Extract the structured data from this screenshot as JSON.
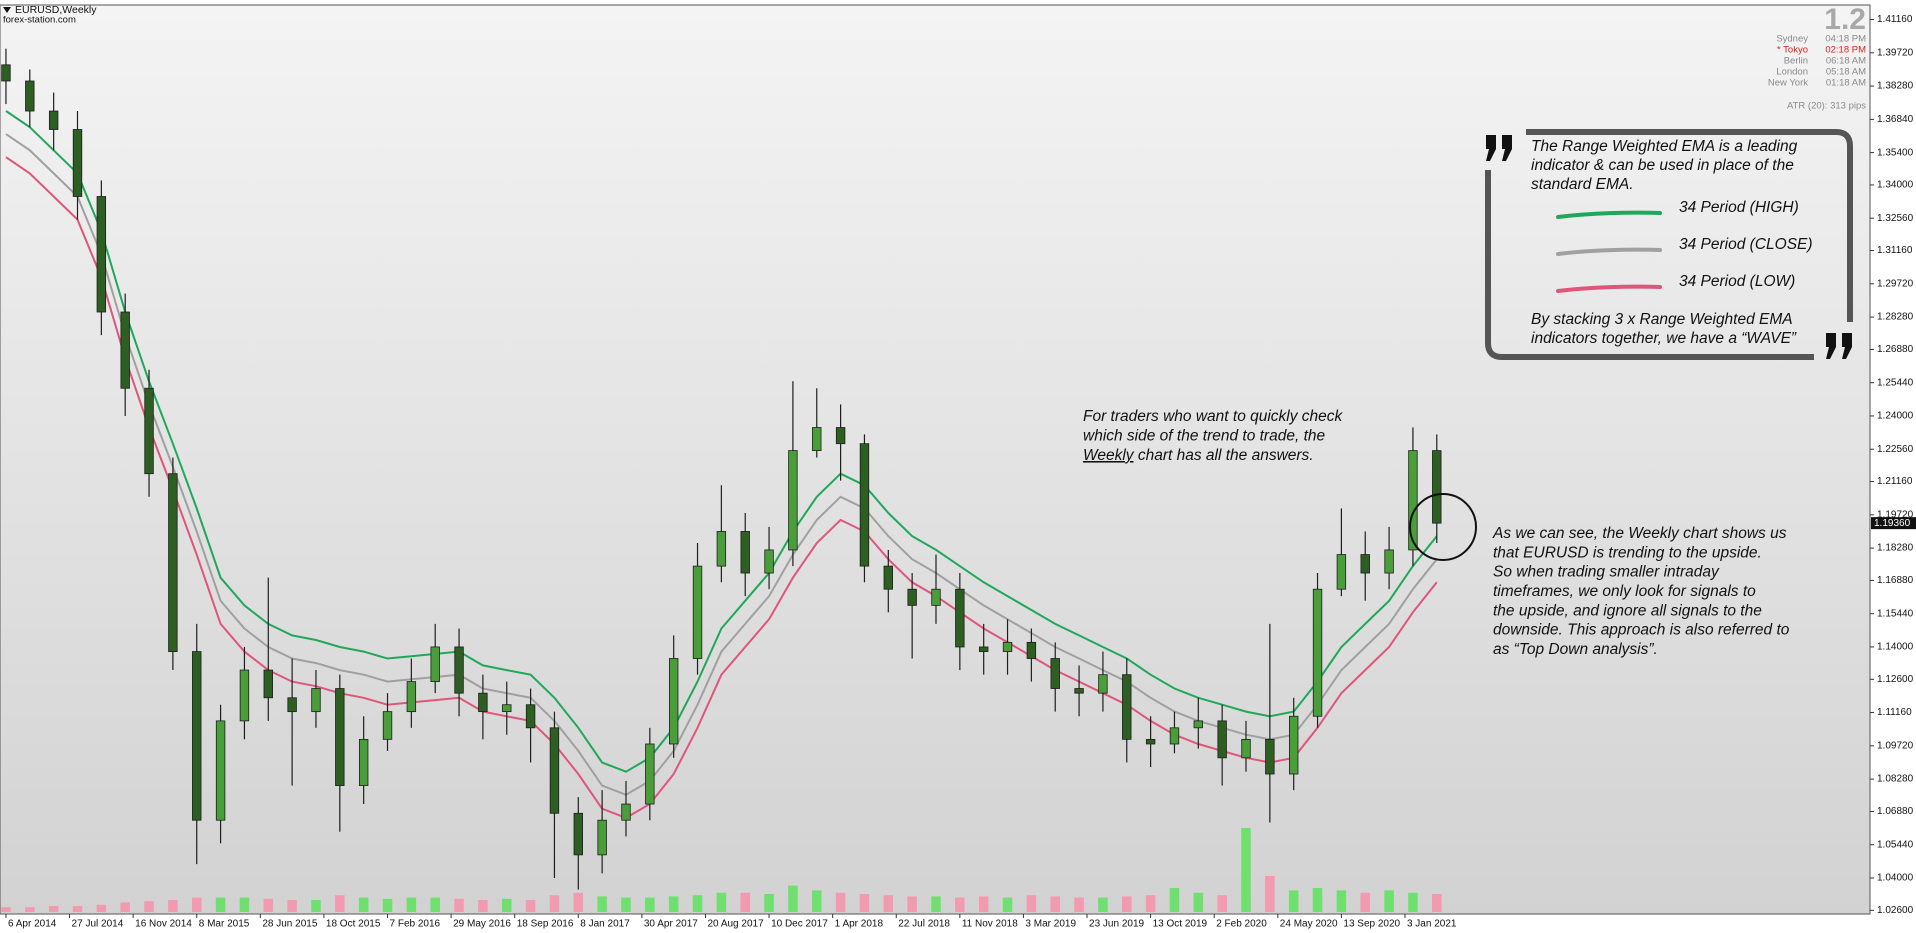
{
  "chart_data": {
    "type": "candlestick",
    "title": "EURUSD,Weekly",
    "subtitle": "forex-station.com",
    "x": [
      0,
      6,
      12,
      18,
      24,
      30,
      36,
      42,
      48,
      54,
      60,
      66,
      72,
      78,
      84,
      90,
      96,
      102,
      108,
      114,
      120,
      126,
      132,
      138,
      144,
      150,
      156,
      162,
      168,
      174,
      180,
      186,
      192,
      198,
      204,
      210,
      216,
      222,
      228,
      234,
      240,
      246,
      252,
      258,
      264,
      270,
      276,
      282,
      288,
      294,
      300,
      306,
      312,
      318,
      324,
      330,
      336,
      342,
      348,
      354,
      360
    ],
    "open": [
      1.392,
      1.385,
      1.372,
      1.364,
      1.335,
      1.285,
      1.252,
      1.215,
      1.138,
      1.065,
      1.108,
      1.13,
      1.118,
      1.112,
      1.122,
      1.08,
      1.1,
      1.112,
      1.125,
      1.14,
      1.12,
      1.112,
      1.115,
      1.105,
      1.068,
      1.05,
      1.065,
      1.072,
      1.098,
      1.135,
      1.175,
      1.19,
      1.172,
      1.182,
      1.225,
      1.235,
      1.228,
      1.175,
      1.165,
      1.158,
      1.165,
      1.14,
      1.138,
      1.142,
      1.135,
      1.122,
      1.12,
      1.128,
      1.1,
      1.098,
      1.105,
      1.108,
      1.092,
      1.1,
      1.085,
      1.11,
      1.165,
      1.18,
      1.172,
      1.182,
      1.225
    ],
    "high": [
      1.399,
      1.39,
      1.38,
      1.372,
      1.342,
      1.293,
      1.26,
      1.222,
      1.15,
      1.115,
      1.14,
      1.17,
      1.135,
      1.13,
      1.128,
      1.11,
      1.12,
      1.135,
      1.15,
      1.148,
      1.128,
      1.125,
      1.122,
      1.112,
      1.075,
      1.078,
      1.082,
      1.105,
      1.145,
      1.185,
      1.21,
      1.198,
      1.192,
      1.255,
      1.252,
      1.245,
      1.232,
      1.182,
      1.172,
      1.18,
      1.172,
      1.15,
      1.152,
      1.148,
      1.142,
      1.132,
      1.138,
      1.135,
      1.11,
      1.112,
      1.118,
      1.115,
      1.108,
      1.15,
      1.118,
      1.172,
      1.2,
      1.19,
      1.192,
      1.235,
      1.232
    ],
    "low": [
      1.375,
      1.365,
      1.355,
      1.325,
      1.275,
      1.24,
      1.205,
      1.13,
      1.046,
      1.055,
      1.1,
      1.108,
      1.08,
      1.105,
      1.06,
      1.072,
      1.095,
      1.105,
      1.12,
      1.11,
      1.1,
      1.102,
      1.09,
      1.04,
      1.035,
      1.042,
      1.058,
      1.065,
      1.092,
      1.128,
      1.168,
      1.162,
      1.165,
      1.175,
      1.222,
      1.212,
      1.168,
      1.155,
      1.135,
      1.15,
      1.13,
      1.128,
      1.128,
      1.125,
      1.112,
      1.11,
      1.112,
      1.09,
      1.088,
      1.094,
      1.096,
      1.08,
      1.086,
      1.064,
      1.078,
      1.105,
      1.162,
      1.16,
      1.165,
      1.175,
      1.185
    ],
    "close": [
      1.385,
      1.372,
      1.364,
      1.335,
      1.285,
      1.252,
      1.215,
      1.138,
      1.065,
      1.108,
      1.13,
      1.118,
      1.112,
      1.122,
      1.08,
      1.1,
      1.112,
      1.125,
      1.14,
      1.12,
      1.112,
      1.115,
      1.105,
      1.068,
      1.05,
      1.065,
      1.072,
      1.098,
      1.135,
      1.175,
      1.19,
      1.172,
      1.182,
      1.225,
      1.235,
      1.228,
      1.175,
      1.165,
      1.158,
      1.165,
      1.14,
      1.138,
      1.142,
      1.135,
      1.122,
      1.12,
      1.128,
      1.1,
      1.098,
      1.105,
      1.108,
      1.092,
      1.1,
      1.085,
      1.11,
      1.165,
      1.18,
      1.172,
      1.182,
      1.225,
      1.1936
    ],
    "up_color": "#4a9e3a",
    "down_color": "#2d5e22",
    "wick_color": "#1e1e1e",
    "series": [
      {
        "name": "34 Period (HIGH)",
        "color": "#1fa85a",
        "values": [
          1.372,
          1.365,
          1.355,
          1.345,
          1.32,
          1.285,
          1.255,
          1.228,
          1.2,
          1.17,
          1.158,
          1.15,
          1.145,
          1.143,
          1.14,
          1.138,
          1.135,
          1.136,
          1.137,
          1.138,
          1.132,
          1.13,
          1.128,
          1.118,
          1.105,
          1.09,
          1.086,
          1.092,
          1.105,
          1.125,
          1.148,
          1.16,
          1.172,
          1.19,
          1.205,
          1.215,
          1.21,
          1.198,
          1.188,
          1.182,
          1.175,
          1.168,
          1.162,
          1.156,
          1.15,
          1.145,
          1.14,
          1.135,
          1.128,
          1.122,
          1.118,
          1.115,
          1.112,
          1.11,
          1.112,
          1.125,
          1.14,
          1.15,
          1.16,
          1.175,
          1.188
        ]
      },
      {
        "name": "34 Period (CLOSE)",
        "color": "#a0a0a0",
        "values": [
          1.362,
          1.355,
          1.345,
          1.335,
          1.31,
          1.275,
          1.245,
          1.218,
          1.19,
          1.16,
          1.148,
          1.14,
          1.135,
          1.133,
          1.13,
          1.128,
          1.125,
          1.126,
          1.127,
          1.128,
          1.122,
          1.12,
          1.118,
          1.108,
          1.095,
          1.08,
          1.076,
          1.082,
          1.095,
          1.115,
          1.138,
          1.15,
          1.162,
          1.18,
          1.195,
          1.205,
          1.2,
          1.188,
          1.178,
          1.172,
          1.165,
          1.158,
          1.152,
          1.146,
          1.14,
          1.135,
          1.13,
          1.125,
          1.118,
          1.112,
          1.108,
          1.105,
          1.102,
          1.1,
          1.102,
          1.115,
          1.13,
          1.14,
          1.15,
          1.165,
          1.178
        ]
      },
      {
        "name": "34 Period (LOW)",
        "color": "#e0557a",
        "values": [
          1.352,
          1.345,
          1.335,
          1.325,
          1.3,
          1.265,
          1.235,
          1.208,
          1.18,
          1.15,
          1.138,
          1.13,
          1.125,
          1.123,
          1.12,
          1.118,
          1.115,
          1.116,
          1.117,
          1.118,
          1.112,
          1.11,
          1.108,
          1.098,
          1.085,
          1.07,
          1.066,
          1.072,
          1.085,
          1.105,
          1.128,
          1.14,
          1.152,
          1.17,
          1.185,
          1.195,
          1.19,
          1.178,
          1.168,
          1.162,
          1.155,
          1.148,
          1.142,
          1.136,
          1.13,
          1.125,
          1.12,
          1.115,
          1.108,
          1.102,
          1.098,
          1.095,
          1.092,
          1.09,
          1.092,
          1.105,
          1.12,
          1.13,
          1.14,
          1.155,
          1.168
        ]
      }
    ],
    "volume": [
      4,
      4,
      5,
      5,
      6,
      8,
      9,
      10,
      12,
      12,
      12,
      11,
      10,
      10,
      14,
      12,
      11,
      12,
      12,
      11,
      10,
      11,
      10,
      14,
      16,
      13,
      12,
      12,
      13,
      14,
      16,
      16,
      15,
      22,
      18,
      16,
      15,
      14,
      13,
      13,
      12,
      13,
      12,
      14,
      13,
      12,
      12,
      13,
      14,
      20,
      16,
      14,
      70,
      30,
      18,
      20,
      18,
      16,
      18,
      16,
      15
    ],
    "vlim": [
      0,
      80
    ],
    "volume_up_color": "#6fe06f",
    "volume_down_color": "#f29ab0",
    "xlim": [
      -1.5,
      469
    ],
    "xticks": [
      {
        "value": 0,
        "label": "6 Apr 2014"
      },
      {
        "value": 16,
        "label": "27 Jul 2014"
      },
      {
        "value": 32,
        "label": "16 Nov 2014"
      },
      {
        "value": 48,
        "label": "8 Mar 2015"
      },
      {
        "value": 64,
        "label": "28 Jun 2015"
      },
      {
        "value": 80,
        "label": "18 Oct 2015"
      },
      {
        "value": 96,
        "label": "7 Feb 2016"
      },
      {
        "value": 112,
        "label": "29 May 2016"
      },
      {
        "value": 128,
        "label": "18 Sep 2016"
      },
      {
        "value": 144,
        "label": "8 Jan 2017"
      },
      {
        "value": 160,
        "label": "30 Apr 2017"
      },
      {
        "value": 176,
        "label": "20 Aug 2017"
      },
      {
        "value": 192,
        "label": "10 Dec 2017"
      },
      {
        "value": 208,
        "label": "1 Apr 2018"
      },
      {
        "value": 224,
        "label": "22 Jul 2018"
      },
      {
        "value": 240,
        "label": "11 Nov 2018"
      },
      {
        "value": 256,
        "label": "3 Mar 2019"
      },
      {
        "value": 272,
        "label": "23 Jun 2019"
      },
      {
        "value": 288,
        "label": "13 Oct 2019"
      },
      {
        "value": 304,
        "label": "2 Feb 2020"
      },
      {
        "value": 320,
        "label": "24 May 2020"
      },
      {
        "value": 336,
        "label": "13 Sep 2020"
      },
      {
        "value": 352,
        "label": "3 Jan 2021"
      }
    ],
    "ylim": [
      1.0244,
      1.4179
    ],
    "yticks": [
      {
        "value": 1.4116,
        "label": "1.41160"
      },
      {
        "value": 1.3972,
        "label": "1.39720"
      },
      {
        "value": 1.3828,
        "label": "1.38280"
      },
      {
        "value": 1.3684,
        "label": "1.36840"
      },
      {
        "value": 1.354,
        "label": "1.35400"
      },
      {
        "value": 1.34,
        "label": "1.34000"
      },
      {
        "value": 1.3256,
        "label": "1.32560"
      },
      {
        "value": 1.3116,
        "label": "1.31160"
      },
      {
        "value": 1.2972,
        "label": "1.29720"
      },
      {
        "value": 1.2828,
        "label": "1.28280"
      },
      {
        "value": 1.2688,
        "label": "1.26880"
      },
      {
        "value": 1.2544,
        "label": "1.25440"
      },
      {
        "value": 1.24,
        "label": "1.24000"
      },
      {
        "value": 1.2256,
        "label": "1.22560"
      },
      {
        "value": 1.2116,
        "label": "1.21160"
      },
      {
        "value": 1.1972,
        "label": "1.19720"
      },
      {
        "value": 1.1828,
        "label": "1.18280"
      },
      {
        "value": 1.1688,
        "label": "1.16880"
      },
      {
        "value": 1.1544,
        "label": "1.15440"
      },
      {
        "value": 1.14,
        "label": "1.14000"
      },
      {
        "value": 1.126,
        "label": "1.12600"
      },
      {
        "value": 1.1116,
        "label": "1.11160"
      },
      {
        "value": 1.0972,
        "label": "1.09720"
      },
      {
        "value": 1.0828,
        "label": "1.08280"
      },
      {
        "value": 1.0688,
        "label": "1.06880"
      },
      {
        "value": 1.0544,
        "label": "1.05440"
      },
      {
        "value": 1.04,
        "label": "1.04000"
      },
      {
        "value": 1.026,
        "label": "1.02600"
      }
    ],
    "last_price": {
      "value": 1.1936,
      "label": "1.19360"
    },
    "grid": false,
    "info": {
      "big": "1.2",
      "clocks": [
        {
          "city": "Sydney",
          "time": "04:18 PM",
          "color": "#8a8a8a"
        },
        {
          "city": "* Tokyo",
          "time": "02:18 PM",
          "color": "#e02020"
        },
        {
          "city": "Berlin",
          "time": "06:18 AM",
          "color": "#8a8a8a"
        },
        {
          "city": "London",
          "time": "05:18 AM",
          "color": "#8a8a8a"
        },
        {
          "city": "New York",
          "time": "01:18 AM",
          "color": "#8a8a8a"
        }
      ],
      "atr": "ATR (20): 313 pips"
    },
    "quote": {
      "lines": [
        "The Range Weighted EMA is a leading",
        "indicator & can be used in place of the",
        "standard EMA."
      ],
      "footer": [
        "By stacking 3 x Range Weighted EMA",
        "indicators together, we have a “WAVE”"
      ]
    },
    "note_1": {
      "lines": [
        "For traders who want to quickly check",
        "which side of the trend to trade, the"
      ],
      "underlined": "Weekly",
      "tail": " chart has all the answers."
    },
    "note_2": {
      "lines": [
        "As we can see, the Weekly chart shows us",
        "that EURUSD is trending to the upside.",
        "So when trading smaller intraday",
        "timeframes, we only look for signals to",
        "the upside, and ignore all signals to the",
        "downside. This approach is also referred to",
        "as “Top Down analysis”."
      ]
    }
  }
}
